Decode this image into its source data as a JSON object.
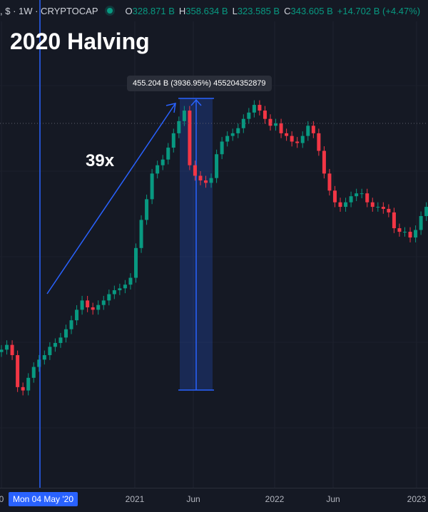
{
  "header": {
    "symbol": ", $ · 1W · CRYPTOCAP",
    "open_label": "O",
    "open": "328.871 B",
    "high_label": "H",
    "high": "358.634 B",
    "low_label": "L",
    "low": "323.585 B",
    "close_label": "C",
    "close": "343.605 B",
    "change": "+14.702 B (+4.47%)"
  },
  "annotations": {
    "title": "2020 Halving",
    "multiplier": "39x",
    "measure_tooltip": "455.204 B (3936.95%) 455204352879",
    "crosshair_date": "Mon 04 May '20"
  },
  "colors": {
    "up": "#089981",
    "down": "#f23645",
    "accent": "#2962ff",
    "background": "#151924"
  },
  "chart_data": {
    "type": "candlestick",
    "scale": "log",
    "interval": "2W",
    "start": "2020-01-20",
    "unit": "B",
    "close": [
      19.3,
      20.5,
      18,
      12,
      11.5,
      13.5,
      15.5,
      17,
      18,
      20,
      21,
      22.5,
      25,
      28,
      32,
      36,
      33,
      32,
      34,
      36,
      39,
      41,
      42,
      44,
      48,
      70,
      100,
      130,
      180,
      200,
      215,
      250,
      300,
      350,
      400,
      200,
      175,
      165,
      160,
      170,
      230,
      270,
      290,
      300,
      320,
      360,
      390,
      430,
      400,
      360,
      330,
      340,
      300,
      290,
      270,
      265,
      290,
      330,
      300,
      240,
      180,
      145,
      125,
      118,
      125,
      135,
      140,
      140,
      125,
      118,
      118,
      115,
      110,
      90,
      86,
      86,
      80,
      88,
      105,
      118
    ],
    "measure": {
      "from": 11.56,
      "to": 466.77,
      "change": "455.204 B",
      "percent": 3936.95
    },
    "halving_date": "2020-05-04",
    "x_ticks": [
      "0",
      "2021",
      "Jun",
      "2022",
      "Jun",
      "2023"
    ],
    "grid": true
  }
}
